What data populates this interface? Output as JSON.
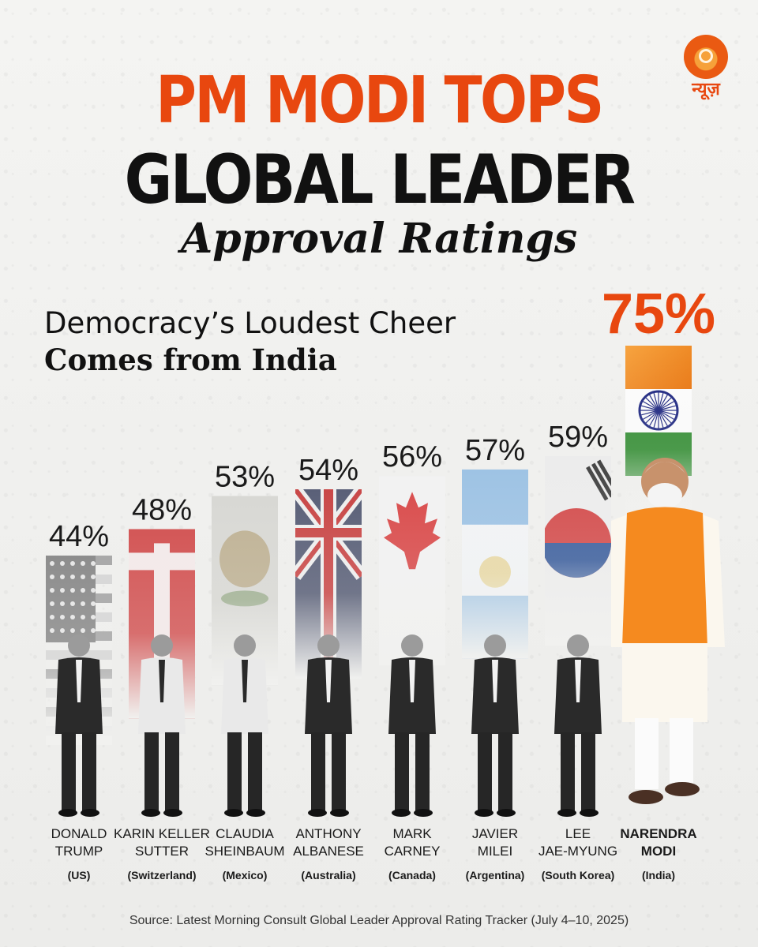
{
  "brand": {
    "logo_text": "न्यूज़"
  },
  "heading": {
    "line1": "PM MODI TOPS",
    "line2": "GLOBAL LEADER",
    "line3": "Approval Ratings"
  },
  "subheading": {
    "line1": "Democracy’s Loudest Cheer",
    "line2": "Comes from India"
  },
  "colors": {
    "accent": "#e8470f",
    "saffron": "#f08a24",
    "green": "#138808",
    "navy": "#1a237e"
  },
  "chart_data": {
    "type": "bar",
    "unit": "%",
    "categories": [
      "DONALD TRUMP",
      "KARIN KELLER SUTTER",
      "CLAUDIA SHEINBAUM",
      "ANTHONY ALBANESE",
      "MARK CARNEY",
      "JAVIER MILEI",
      "LEE JAE-MYUNG",
      "NARENDRA MODI"
    ],
    "name_lines": [
      [
        "DONALD",
        "TRUMP"
      ],
      [
        "KARIN KELLER",
        "SUTTER"
      ],
      [
        "CLAUDIA",
        "SHEINBAUM"
      ],
      [
        "ANTHONY",
        "ALBANESE"
      ],
      [
        "MARK",
        "CARNEY"
      ],
      [
        "JAVIER",
        "MILEI"
      ],
      [
        "LEE",
        "JAE-MYUNG"
      ],
      [
        "NARENDRA",
        "MODI"
      ]
    ],
    "countries": [
      "(US)",
      "(Switzerland)",
      "(Mexico)",
      "(Australia)",
      "(Canada)",
      "(Argentina)",
      "(South Korea)",
      "(India)"
    ],
    "values": [
      44,
      48,
      53,
      54,
      56,
      57,
      59,
      75
    ],
    "value_labels": [
      "44%",
      "48%",
      "53%",
      "54%",
      "56%",
      "57%",
      "59%",
      "75%"
    ],
    "flags": [
      "us-flag",
      "switzerland-flag",
      "mexico-flag",
      "australia-flag",
      "canada-flag",
      "argentina-flag",
      "south-korea-flag",
      "india-flag"
    ],
    "highlight": "NARENDRA MODI"
  },
  "source": "Source: Latest Morning Consult Global Leader Approval Rating Tracker (July 4–10, 2025)"
}
